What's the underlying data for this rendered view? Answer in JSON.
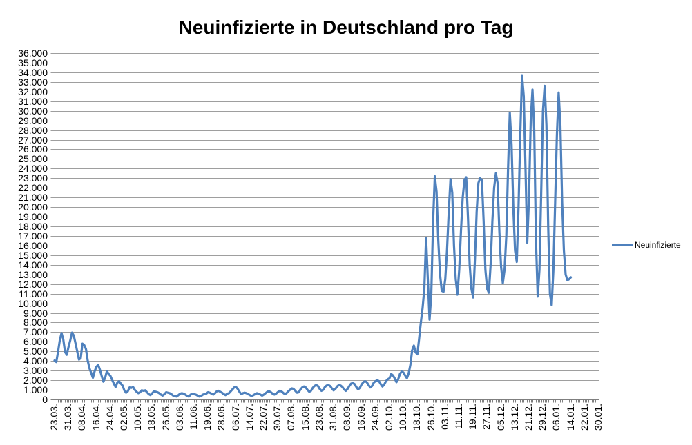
{
  "title": "Neuinfizierte in Deutschland pro Tag",
  "legend_label": "Neuinfizierte",
  "colors": {
    "line": "#4F81BD",
    "grid": "#9E9E9E",
    "axis": "#7F7F7F",
    "text": "#000000",
    "background": "#FFFFFF"
  },
  "chart_data": {
    "type": "line",
    "title": "Neuinfizierte in Deutschland pro Tag",
    "xlabel": "",
    "ylabel": "",
    "ylim": [
      0,
      36000
    ],
    "ytick_step": 1000,
    "grid": true,
    "legend_position": "right",
    "legend": [
      "Neuinfizierte"
    ],
    "ytick_labels": [
      "0",
      "1.000",
      "2.000",
      "3.000",
      "4.000",
      "5.000",
      "6.000",
      "7.000",
      "8.000",
      "9.000",
      "10.000",
      "11.000",
      "12.000",
      "13.000",
      "14.000",
      "15.000",
      "16.000",
      "17.000",
      "18.000",
      "19.000",
      "20.000",
      "21.000",
      "22.000",
      "23.000",
      "24.000",
      "25.000",
      "26.000",
      "27.000",
      "28.000",
      "29.000",
      "30.000",
      "31.000",
      "32.000",
      "33.000",
      "34.000",
      "35.000",
      "36.000"
    ],
    "xtick_labels": [
      "23.03.",
      "31.03.",
      "08.04.",
      "16.04.",
      "24.04.",
      "02.05.",
      "10.05.",
      "18.05.",
      "26.05.",
      "03.06.",
      "11.06.",
      "19.06.",
      "28.06.",
      "06.07.",
      "14.07.",
      "22.07.",
      "30.07.",
      "07.08.",
      "15.08.",
      "23.08.",
      "31.08.",
      "08.09.",
      "16.09.",
      "24.09.",
      "02.10.",
      "10.10.",
      "18.10.",
      "26.10.",
      "03.11.",
      "11.11.",
      "19.11.",
      "27.11.",
      "05.12.",
      "13.12.",
      "21.12.",
      "29.12.",
      "06.01.",
      "14.01.",
      "22.01.",
      "30.01."
    ],
    "xtick_interval_days": 8,
    "series": [
      {
        "name": "Neuinfizierte",
        "start_date": "23.03.",
        "end_date": "13.01.",
        "frequency": "daily",
        "values": [
          4050,
          3900,
          4950,
          6150,
          6900,
          6250,
          4950,
          4650,
          5450,
          6150,
          6950,
          6650,
          5850,
          5000,
          4150,
          4300,
          5800,
          5650,
          5250,
          4050,
          3250,
          2750,
          2250,
          2950,
          3400,
          3600,
          3100,
          2450,
          1850,
          2250,
          2950,
          2650,
          2450,
          2050,
          1650,
          1300,
          1750,
          1900,
          1650,
          1450,
          950,
          700,
          850,
          1250,
          1200,
          1300,
          1000,
          800,
          650,
          750,
          950,
          900,
          950,
          750,
          550,
          450,
          650,
          850,
          800,
          750,
          650,
          500,
          400,
          550,
          750,
          700,
          650,
          550,
          400,
          350,
          300,
          450,
          600,
          650,
          600,
          500,
          350,
          300,
          500,
          600,
          550,
          500,
          400,
          300,
          350,
          500,
          550,
          600,
          750,
          700,
          600,
          500,
          650,
          850,
          900,
          800,
          700,
          550,
          450,
          600,
          650,
          850,
          1050,
          1250,
          1300,
          1100,
          800,
          550,
          650,
          700,
          650,
          550,
          450,
          350,
          450,
          550,
          650,
          600,
          500,
          400,
          500,
          650,
          800,
          850,
          750,
          600,
          500,
          600,
          750,
          900,
          850,
          700,
          550,
          650,
          850,
          1000,
          1150,
          1100,
          900,
          700,
          750,
          1050,
          1250,
          1350,
          1250,
          1000,
          800,
          900,
          1200,
          1400,
          1500,
          1400,
          1100,
          900,
          1000,
          1300,
          1450,
          1500,
          1400,
          1150,
          950,
          1100,
          1350,
          1500,
          1450,
          1300,
          1050,
          900,
          1100,
          1400,
          1650,
          1700,
          1600,
          1300,
          1050,
          1200,
          1550,
          1800,
          1900,
          1800,
          1500,
          1250,
          1400,
          1750,
          1900,
          2000,
          1900,
          1600,
          1350,
          1550,
          1900,
          2100,
          2200,
          2650,
          2500,
          2200,
          1800,
          2100,
          2650,
          2900,
          2800,
          2500,
          2200,
          2700,
          3600,
          5100,
          5600,
          4900,
          4700,
          6300,
          8000,
          9500,
          11500,
          16800,
          12500,
          8300,
          11000,
          18400,
          23200,
          21600,
          16500,
          13000,
          11300,
          11200,
          12500,
          15500,
          19500,
          22900,
          21500,
          16000,
          12500,
          10900,
          13500,
          17500,
          21000,
          22800,
          23100,
          19000,
          14000,
          11500,
          10600,
          14500,
          19500,
          22500,
          23000,
          22800,
          18500,
          13500,
          11500,
          11100,
          14000,
          18500,
          22000,
          23500,
          22500,
          17500,
          13800,
          12100,
          13500,
          17000,
          24000,
          29800,
          26500,
          20000,
          15500,
          14300,
          20000,
          27500,
          33700,
          31500,
          24000,
          16300,
          21000,
          29000,
          32200,
          28000,
          16500,
          10700,
          13500,
          21500,
          30000,
          32600,
          28500,
          18000,
          11000,
          9800,
          13500,
          20500,
          27500,
          31900,
          28500,
          20500,
          15500,
          13000,
          12400,
          12500,
          12700
        ]
      }
    ]
  }
}
